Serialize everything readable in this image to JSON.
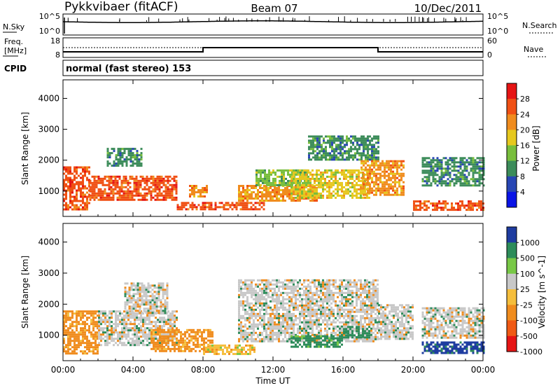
{
  "header": {
    "station": "Pykkvibaer (fitACF)",
    "beam": "Beam 07",
    "date": "10/Dec/2011"
  },
  "noise_panel": {
    "left_label": "N.Sky",
    "left_ticks": [
      "10^5",
      "10^0"
    ],
    "right_label": "N.Search",
    "right_ticks": [
      "10^5",
      "10^0"
    ]
  },
  "freq_panel": {
    "left_label_1": "Freq.",
    "left_label_2": "[MHz]",
    "left_ticks": [
      "18",
      "8"
    ],
    "right_label": "Nave",
    "right_ticks": [
      "60",
      "0"
    ]
  },
  "cpid_panel": {
    "label": "CPID",
    "text": "normal (fast stereo) 153"
  },
  "colors": {
    "power": [
      "#0a14e6",
      "#2846b4",
      "#3c8c5a",
      "#78be3c",
      "#e6c81e",
      "#f08c1e",
      "#f05014",
      "#e61414"
    ],
    "velocity": [
      "#e61414",
      "#f05a14",
      "#f08c1e",
      "#f5be3c",
      "#c8c8c8",
      "#78c846",
      "#2d8c5a",
      "#1e3ca0"
    ],
    "noise_line": "#000000"
  },
  "chart_data": [
    {
      "type": "heatmap",
      "title": "",
      "xlabel": "",
      "ylabel": "Slant Range [km]",
      "colorbar_label": "Power [dB]",
      "colorbar_ticks": [
        "4",
        "8",
        "12",
        "16",
        "20",
        "24",
        "28"
      ],
      "x_ticks": [
        "00:00",
        "04:00",
        "08:00",
        "12:00",
        "16:00",
        "20:00",
        "00:00"
      ],
      "y_ticks": [
        "1000",
        "2000",
        "3000",
        "4000"
      ],
      "xlim": [
        0,
        24
      ],
      "ylim": [
        180,
        4600
      ],
      "regions": [
        {
          "t": [
            0,
            1.5
          ],
          "r": [
            400,
            1800
          ],
          "power": 26
        },
        {
          "t": [
            1.5,
            6.5
          ],
          "r": [
            700,
            1500
          ],
          "power": 24
        },
        {
          "t": [
            2.5,
            4.5
          ],
          "r": [
            1800,
            2400
          ],
          "power": 8
        },
        {
          "t": [
            6.5,
            11.5
          ],
          "r": [
            380,
            650
          ],
          "power": 24
        },
        {
          "t": [
            7.2,
            8.2
          ],
          "r": [
            800,
            1200
          ],
          "power": 20
        },
        {
          "t": [
            10,
            14.5
          ],
          "r": [
            700,
            1200
          ],
          "power": 22
        },
        {
          "t": [
            11,
            14
          ],
          "r": [
            1200,
            1700
          ],
          "power": 14
        },
        {
          "t": [
            13,
            17.5
          ],
          "r": [
            800,
            1700
          ],
          "power": 16
        },
        {
          "t": [
            14,
            18
          ],
          "r": [
            2000,
            2800
          ],
          "power": 8
        },
        {
          "t": [
            17,
            19.5
          ],
          "r": [
            900,
            2000
          ],
          "power": 22
        },
        {
          "t": [
            20,
            24
          ],
          "r": [
            400,
            700
          ],
          "power": 26
        },
        {
          "t": [
            20.5,
            24
          ],
          "r": [
            1200,
            2100
          ],
          "power": 8
        }
      ]
    },
    {
      "type": "heatmap",
      "title": "",
      "xlabel": "Time UT",
      "ylabel": "Slant Range [km]",
      "colorbar_label": "Velocity [m s^-1]",
      "colorbar_ticks": [
        "1000",
        "500",
        "100",
        "25",
        "-25",
        "-100",
        "-500",
        "-1000"
      ],
      "x_ticks": [
        "00:00",
        "04:00",
        "08:00",
        "12:00",
        "16:00",
        "20:00",
        "00:00"
      ],
      "y_ticks": [
        "1000",
        "2000",
        "3000",
        "4000"
      ],
      "xlim": [
        0,
        24
      ],
      "ylim": [
        180,
        4600
      ],
      "regions": [
        {
          "t": [
            0,
            2
          ],
          "r": [
            400,
            1800
          ],
          "velocity": -150
        },
        {
          "t": [
            2,
            6.5
          ],
          "r": [
            700,
            1800
          ],
          "velocity": 0
        },
        {
          "t": [
            3.5,
            6
          ],
          "r": [
            1700,
            2700
          ],
          "velocity": 0
        },
        {
          "t": [
            5,
            8.5
          ],
          "r": [
            500,
            1200
          ],
          "velocity": -200
        },
        {
          "t": [
            8,
            11
          ],
          "r": [
            380,
            700
          ],
          "velocity": -80
        },
        {
          "t": [
            10,
            18
          ],
          "r": [
            800,
            2800
          ],
          "velocity": 0
        },
        {
          "t": [
            13,
            16
          ],
          "r": [
            600,
            1000
          ],
          "velocity": 150
        },
        {
          "t": [
            16,
            17.5
          ],
          "r": [
            900,
            1300
          ],
          "velocity": 300
        },
        {
          "t": [
            18,
            20
          ],
          "r": [
            900,
            2000
          ],
          "velocity": 0
        },
        {
          "t": [
            20.5,
            24
          ],
          "r": [
            400,
            800
          ],
          "velocity": 600
        },
        {
          "t": [
            20.5,
            24
          ],
          "r": [
            900,
            1900
          ],
          "velocity": 0
        }
      ]
    }
  ]
}
